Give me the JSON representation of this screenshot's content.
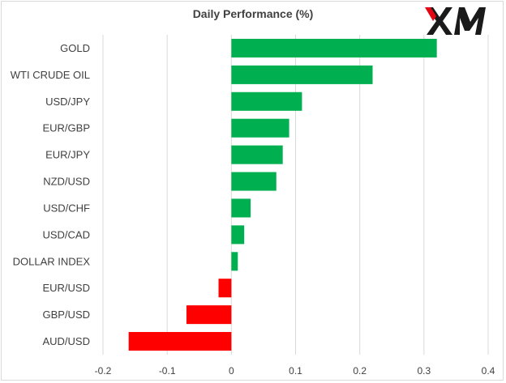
{
  "chart_data": {
    "type": "bar",
    "orientation": "horizontal",
    "title": "Daily Performance  (%)",
    "categories": [
      "GOLD",
      "WTI CRUDE OIL",
      "USD/JPY",
      "EUR/GBP",
      "EUR/JPY",
      "NZD/USD",
      "USD/CHF",
      "USD/CAD",
      "DOLLAR INDEX",
      "EUR/USD",
      "GBP/USD",
      "AUD/USD"
    ],
    "values": [
      0.32,
      0.22,
      0.11,
      0.09,
      0.08,
      0.07,
      0.03,
      0.02,
      0.01,
      -0.02,
      -0.07,
      -0.16
    ],
    "xlim": [
      -0.2,
      0.4
    ],
    "xticks": [
      "-0.2",
      "-0.1",
      "0",
      "0.1",
      "0.2",
      "0.3",
      "0.4"
    ],
    "xtick_values": [
      -0.2,
      -0.1,
      0,
      0.1,
      0.2,
      0.3,
      0.4
    ],
    "grid": "vertical",
    "colors": {
      "positive": "#00b050",
      "negative": "#ff0000",
      "grid": "#d9d9d9",
      "text": "#404040"
    }
  },
  "logo": {
    "text": "XM",
    "icon": "xm-logo",
    "color": "#1a1a1a",
    "accent": "#e30613"
  }
}
